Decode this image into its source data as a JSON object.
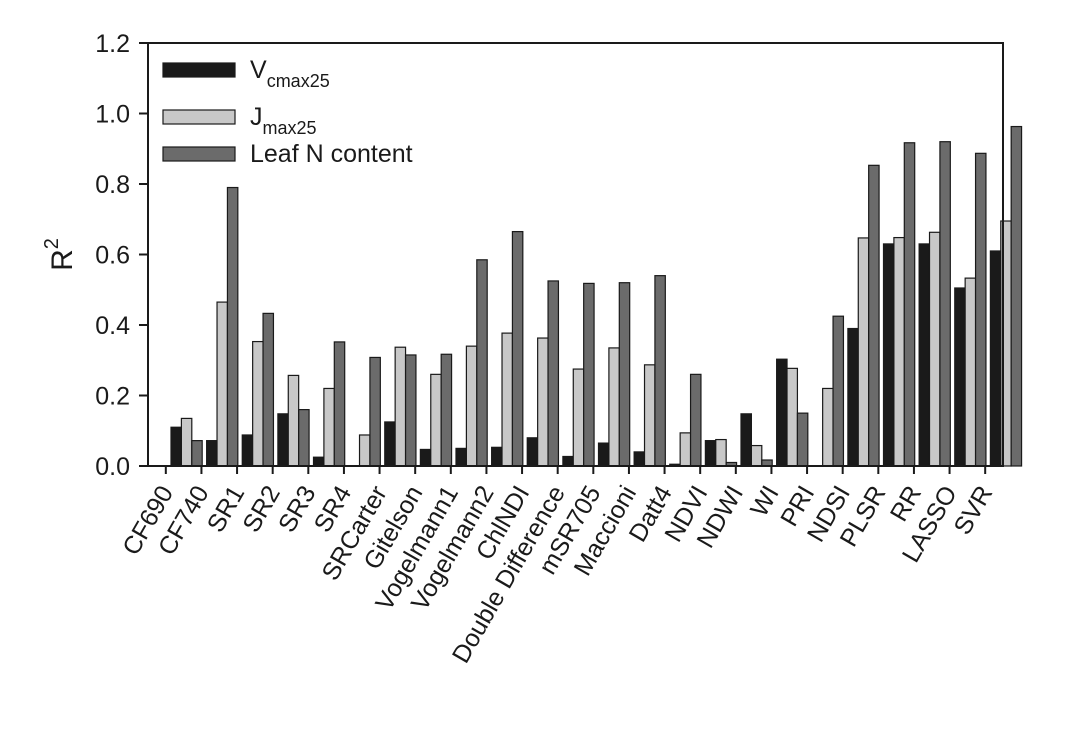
{
  "chart_data": {
    "type": "bar",
    "ylabel": "R",
    "ylabel_superscript": "2",
    "ylim": [
      0,
      1.2
    ],
    "yticks": [
      "0.0",
      "0.2",
      "0.4",
      "0.6",
      "0.8",
      "1.0",
      "1.2"
    ],
    "grid": false,
    "legend_position": "top-left",
    "categories": [
      "CF690",
      "CF740",
      "SR1",
      "SR2",
      "SR3",
      "SR4",
      "SRCarter",
      "Gitelson",
      "Vogelmann1",
      "Vogelmann2",
      "ChlNDI",
      "Double Difference",
      "mSR705",
      "Maccioni",
      "Datt4",
      "NDVI",
      "NDWI",
      "WI",
      "PRI",
      "NDSI",
      "PLSR",
      "RR",
      "LASSO",
      "SVR"
    ],
    "series": [
      {
        "name": "Vcmax25",
        "legend_main": "V",
        "legend_sub": "cmax25",
        "color": "#1a1a1a",
        "values": [
          0.11,
          0.072,
          0.088,
          0.148,
          0.025,
          0.0,
          0.125,
          0.047,
          0.05,
          0.053,
          0.08,
          0.027,
          0.065,
          0.04,
          0.005,
          0.072,
          0.148,
          0.303,
          0.0,
          0.39,
          0.63,
          0.63,
          0.505,
          0.61
        ]
      },
      {
        "name": "Jmax25",
        "legend_main": "J",
        "legend_sub": "max25",
        "color": "#c8c8c8",
        "values": [
          0.135,
          0.465,
          0.353,
          0.257,
          0.22,
          0.088,
          0.337,
          0.26,
          0.34,
          0.377,
          0.363,
          0.275,
          0.335,
          0.287,
          0.094,
          0.075,
          0.058,
          0.277,
          0.22,
          0.647,
          0.648,
          0.663,
          0.533,
          0.695
        ]
      },
      {
        "name": "Leaf N content",
        "legend_main": "Leaf N content",
        "legend_sub": "",
        "color": "#6b6b6b",
        "values": [
          0.072,
          0.79,
          0.433,
          0.16,
          0.352,
          0.308,
          0.315,
          0.317,
          0.585,
          0.665,
          0.525,
          0.518,
          0.52,
          0.54,
          0.26,
          0.01,
          0.017,
          0.15,
          0.425,
          0.853,
          0.917,
          0.92,
          0.887,
          0.963
        ]
      }
    ]
  }
}
